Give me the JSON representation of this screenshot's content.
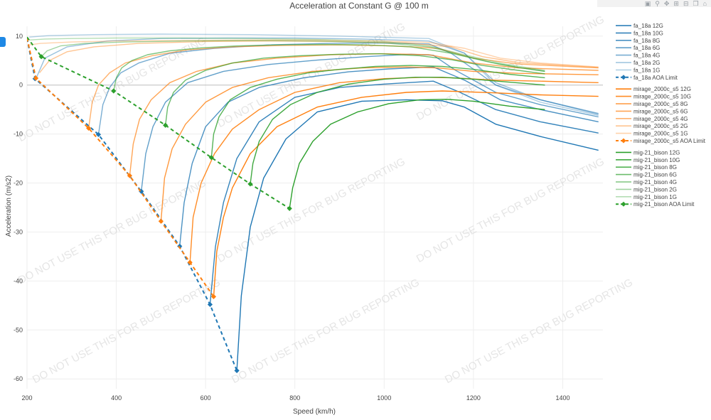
{
  "chart_data": {
    "type": "line",
    "title": "Acceleration at Constant G @ 100 m",
    "xlabel": "Speed (km/h)",
    "ylabel": "Acceleration (m/s2)",
    "xlim": [
      200,
      1490
    ],
    "ylim": [
      -62,
      12
    ],
    "xticks": [
      200,
      400,
      600,
      800,
      1000,
      1200,
      1400
    ],
    "yticks": [
      -60,
      -50,
      -40,
      -30,
      -20,
      -10,
      0,
      10
    ],
    "watermark": "DO NOT USE THIS FOR BUG REPORTING",
    "colors": {
      "fa_18a": "#1f77b4",
      "mirage_2000c_s5": "#ff7f0e",
      "mig-21_bison": "#2ca02c"
    },
    "series": [
      {
        "name": "fa_18a 12G",
        "aircraft": "fa_18a",
        "g": 12,
        "x": [
          670,
          680,
          700,
          730,
          780,
          850,
          950,
          1050,
          1130,
          1180,
          1250,
          1350,
          1480
        ],
        "y": [
          -58.3,
          -43,
          -29,
          -19,
          -11,
          -5.5,
          -3.3,
          -3,
          -3.2,
          -4.5,
          -8,
          -10.5,
          -13.3
        ]
      },
      {
        "name": "fa_18a 10G",
        "aircraft": "fa_18a",
        "g": 10,
        "x": [
          610,
          622,
          640,
          670,
          720,
          800,
          900,
          1000,
          1110,
          1170,
          1250,
          1350,
          1480
        ],
        "y": [
          -44.8,
          -33,
          -24,
          -15,
          -7.5,
          -2.5,
          -0.5,
          0.2,
          0.8,
          -1.5,
          -5,
          -7.5,
          -9.8
        ]
      },
      {
        "name": "fa_18a 8G",
        "aircraft": "fa_18a",
        "g": 8,
        "x": [
          542,
          552,
          570,
          600,
          650,
          720,
          820,
          920,
          1010,
          1110,
          1180,
          1260,
          1350,
          1480
        ],
        "y": [
          -32.9,
          -24,
          -16,
          -8.5,
          -3.5,
          -0.5,
          1.5,
          2.7,
          3.3,
          3.7,
          1,
          -3,
          -5,
          -7.5
        ]
      },
      {
        "name": "fa_18a 6G",
        "aircraft": "fa_18a",
        "g": 6,
        "x": [
          456,
          466,
          482,
          510,
          560,
          640,
          740,
          850,
          960,
          1060,
          1110,
          1160,
          1250,
          1350,
          1480
        ],
        "y": [
          -21.7,
          -14,
          -8.5,
          -3.5,
          0.5,
          2.8,
          4.2,
          5.1,
          5.8,
          6.3,
          6.1,
          3,
          -1.5,
          -4,
          -6.5
        ]
      },
      {
        "name": "fa_18a 4G",
        "aircraft": "fa_18a",
        "g": 4,
        "x": [
          360,
          370,
          385,
          410,
          450,
          520,
          620,
          740,
          870,
          1000,
          1100,
          1150,
          1250,
          1350,
          1480
        ],
        "y": [
          -10.1,
          -4,
          -0.5,
          2.5,
          4.5,
          6.5,
          7.5,
          8.2,
          8.5,
          8.6,
          8.4,
          6.5,
          0,
          -3,
          -5.8
        ]
      },
      {
        "name": "fa_18a 2G",
        "aircraft": "fa_18a",
        "g": 2,
        "x": [
          220,
          240,
          290,
          380,
          500,
          650,
          800,
          950,
          1100,
          1180,
          1250,
          1350,
          1480
        ],
        "y": [
          1.3,
          5.5,
          7.8,
          9,
          9.5,
          9.6,
          9.6,
          9.4,
          9,
          6.5,
          0.5,
          -3,
          -6
        ]
      },
      {
        "name": "fa_18a 1G",
        "aircraft": "fa_18a",
        "g": 1,
        "x": [
          205,
          250,
          350,
          500,
          700,
          900,
          1100,
          1180,
          1250,
          1350,
          1480
        ],
        "y": [
          9.8,
          10.1,
          10.3,
          10.4,
          10.3,
          10,
          9.5,
          6.5,
          0,
          -3.5,
          -6.2
        ]
      },
      {
        "name": "fa_18a AOA Limit",
        "aircraft": "fa_18a",
        "limit": true,
        "x": [
          200,
          218,
          360,
          456,
          542,
          610,
          670
        ],
        "y": [
          9.5,
          1.3,
          -10.1,
          -21.7,
          -32.9,
          -44.8,
          -58.3
        ]
      },
      {
        "name": "mirage_2000c_s5 12G",
        "aircraft": "mirage_2000c_s5",
        "g": 12,
        "x": [
          618,
          625,
          640,
          660,
          700,
          760,
          850,
          950,
          1050,
          1130,
          1250,
          1350,
          1480
        ],
        "y": [
          -43.2,
          -34,
          -27,
          -21,
          -14,
          -8.5,
          -4.5,
          -2.5,
          -1.5,
          -1.2,
          -1.6,
          -2,
          -2.3
        ]
      },
      {
        "name": "mirage_2000c_s5 10G",
        "aircraft": "mirage_2000c_s5",
        "g": 10,
        "x": [
          565,
          572,
          590,
          620,
          660,
          720,
          800,
          900,
          1000,
          1090,
          1150,
          1250,
          1350,
          1480
        ],
        "y": [
          -36.2,
          -27,
          -20,
          -14,
          -9,
          -5,
          -1.5,
          0.5,
          1.3,
          1.6,
          1.5,
          1,
          0.8,
          0.5
        ]
      },
      {
        "name": "mirage_2000c_s5 8G",
        "aircraft": "mirage_2000c_s5",
        "g": 8,
        "x": [
          500,
          508,
          525,
          555,
          600,
          660,
          740,
          840,
          950,
          1050,
          1120,
          1200,
          1300,
          1480
        ],
        "y": [
          -27.8,
          -19,
          -13,
          -8,
          -3.5,
          -0.5,
          1.5,
          2.8,
          3.5,
          3.7,
          3.5,
          2.8,
          2.4,
          2.1
        ]
      },
      {
        "name": "mirage_2000c_s5 6G",
        "aircraft": "mirage_2000c_s5",
        "g": 6,
        "x": [
          430,
          438,
          452,
          478,
          520,
          580,
          660,
          760,
          880,
          1000,
          1100,
          1200,
          1300,
          1480
        ],
        "y": [
          -18.5,
          -12,
          -7,
          -3,
          0.5,
          2.8,
          4.5,
          5.5,
          6.2,
          6.4,
          6.2,
          4.5,
          3.5,
          3
        ]
      },
      {
        "name": "mirage_2000c_s5 4G",
        "aircraft": "mirage_2000c_s5",
        "g": 4,
        "x": [
          338,
          346,
          360,
          385,
          420,
          480,
          560,
          660,
          780,
          900,
          1020,
          1120,
          1200,
          1300,
          1480
        ],
        "y": [
          -8.8,
          -3.5,
          0,
          2.5,
          4.5,
          6,
          7.2,
          7.8,
          8.1,
          8.2,
          8,
          7.5,
          5.5,
          4.3,
          3.5
        ]
      },
      {
        "name": "mirage_2000c_s5 2G",
        "aircraft": "mirage_2000c_s5",
        "g": 2,
        "x": [
          228,
          250,
          290,
          350,
          450,
          600,
          750,
          900,
          1050,
          1150,
          1220,
          1300,
          1480
        ],
        "y": [
          2.5,
          5,
          6.8,
          7.8,
          8.5,
          8.9,
          9,
          8.9,
          8.6,
          7.8,
          5.8,
          4.6,
          3.6
        ]
      },
      {
        "name": "mirage_2000c_s5 1G",
        "aircraft": "mirage_2000c_s5",
        "g": 1,
        "x": [
          205,
          230,
          300,
          400,
          550,
          700,
          850,
          1000,
          1100,
          1180,
          1260,
          1350,
          1480
        ],
        "y": [
          8.2,
          8.5,
          8.8,
          9,
          9.1,
          9.2,
          9.2,
          9,
          8.7,
          7.5,
          5.5,
          4.5,
          3.7
        ]
      },
      {
        "name": "mirage_2000c_s5 AOA Limit",
        "aircraft": "mirage_2000c_s5",
        "limit": true,
        "x": [
          200,
          220,
          338,
          430,
          500,
          565,
          618
        ],
        "y": [
          9.6,
          1.4,
          -8.8,
          -18.5,
          -27.8,
          -36.2,
          -43.2
        ]
      },
      {
        "name": "mig-21_bison 12G",
        "aircraft": "mig-21_bison",
        "g": 12,
        "x": [
          788,
          795,
          810,
          840,
          880,
          940,
          1010,
          1080,
          1140,
          1200,
          1280,
          1360
        ],
        "y": [
          -25.2,
          -21,
          -16,
          -11.5,
          -8,
          -5.5,
          -3.8,
          -3,
          -2.9,
          -3.3,
          -4.3,
          -5
        ]
      },
      {
        "name": "mig-21_bison 10G",
        "aircraft": "mig-21_bison",
        "g": 10,
        "x": [
          700,
          706,
          720,
          750,
          790,
          850,
          920,
          1000,
          1070,
          1130,
          1200,
          1280,
          1360
        ],
        "y": [
          -20.2,
          -16,
          -11.5,
          -7,
          -4,
          -1.5,
          0.2,
          1.2,
          1.6,
          1.6,
          1.2,
          0.6,
          0
        ]
      },
      {
        "name": "mig-21_bison 8G",
        "aircraft": "mig-21_bison",
        "g": 8,
        "x": [
          613,
          618,
          630,
          655,
          700,
          760,
          830,
          900,
          980,
          1060,
          1130,
          1200,
          1280,
          1360
        ],
        "y": [
          -14.8,
          -10,
          -6.5,
          -3,
          -0.5,
          1.2,
          2.5,
          3.2,
          3.8,
          4,
          3.8,
          3.2,
          2.2,
          1.5
        ]
      },
      {
        "name": "mig-21_bison 6G",
        "aircraft": "mig-21_bison",
        "g": 6,
        "x": [
          510,
          515,
          528,
          555,
          600,
          660,
          730,
          810,
          900,
          990,
          1080,
          1150,
          1220,
          1300,
          1360
        ],
        "y": [
          -8.2,
          -4.5,
          -1.5,
          1,
          3,
          4.5,
          5.5,
          6,
          6.3,
          6.4,
          6,
          5.2,
          4,
          3,
          2.3
        ]
      },
      {
        "name": "mig-21_bison 4G",
        "aircraft": "mig-21_bison",
        "g": 4,
        "x": [
          394,
          400,
          412,
          435,
          470,
          520,
          590,
          670,
          760,
          860,
          960,
          1060,
          1150,
          1230,
          1300,
          1360
        ],
        "y": [
          -1.2,
          1.5,
          3.5,
          5,
          6.2,
          7,
          7.6,
          8,
          8.2,
          8.3,
          8.2,
          7.8,
          6.5,
          4.8,
          3.6,
          2.8
        ]
      },
      {
        "name": "mig-21_bison 2G",
        "aircraft": "mig-21_bison",
        "g": 2,
        "x": [
          232,
          245,
          275,
          330,
          420,
          550,
          700,
          850,
          1000,
          1100,
          1180,
          1260,
          1360
        ],
        "y": [
          5.8,
          7,
          8,
          8.5,
          8.8,
          9,
          9.1,
          9,
          8.6,
          7.8,
          6,
          4.2,
          2.8
        ]
      },
      {
        "name": "mig-21_bison 1G",
        "aircraft": "mig-21_bison",
        "g": 1,
        "x": [
          205,
          240,
          300,
          400,
          550,
          700,
          850,
          1000,
          1100,
          1180,
          1270,
          1360
        ],
        "y": [
          9.2,
          9.4,
          9.5,
          9.6,
          9.6,
          9.5,
          9.3,
          8.9,
          8,
          6.2,
          4.3,
          3
        ]
      },
      {
        "name": "mig-21_bison AOA Limit",
        "aircraft": "mig-21_bison",
        "limit": true,
        "x": [
          200,
          232,
          394,
          510,
          613,
          700,
          788
        ],
        "y": [
          9.8,
          5.8,
          -1.2,
          -8.2,
          -14.8,
          -20.2,
          -25.2
        ]
      }
    ]
  }
}
